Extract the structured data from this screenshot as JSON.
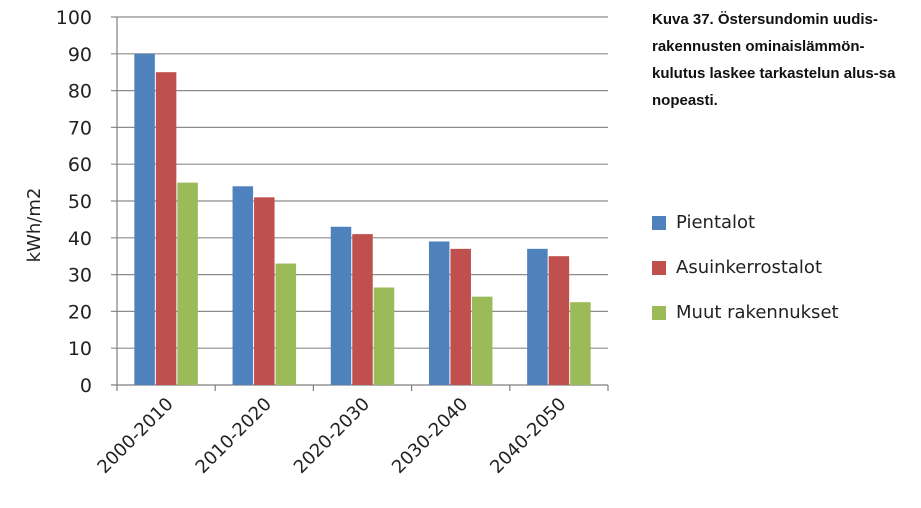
{
  "caption": "Kuva 37. Östersundomin uudis-rakennusten ominaislämmön-kulutus laskee tarkastelun alus-sa nopeasti.",
  "chart_data": {
    "type": "bar",
    "title": "",
    "xlabel": "",
    "ylabel": "kWh/m2",
    "ylim": [
      0,
      100
    ],
    "yticks": [
      "0",
      "10",
      "20",
      "30",
      "40",
      "50",
      "60",
      "70",
      "80",
      "90",
      "100"
    ],
    "grid": true,
    "legend_position": "right",
    "categories": [
      "2000-2010",
      "2010-2020",
      "2020-2030",
      "2030-2040",
      "2040-2050"
    ],
    "series": [
      {
        "name": "Pientalot",
        "color": "#4F81BD",
        "values": [
          90,
          54,
          43,
          39,
          37
        ]
      },
      {
        "name": "Asuinkerrostalot",
        "color": "#C0504D",
        "values": [
          85,
          51,
          41,
          37,
          35
        ]
      },
      {
        "name": "Muut rakennukset",
        "color": "#9BBB59",
        "values": [
          55,
          33,
          26.5,
          24,
          22.5
        ]
      }
    ]
  }
}
